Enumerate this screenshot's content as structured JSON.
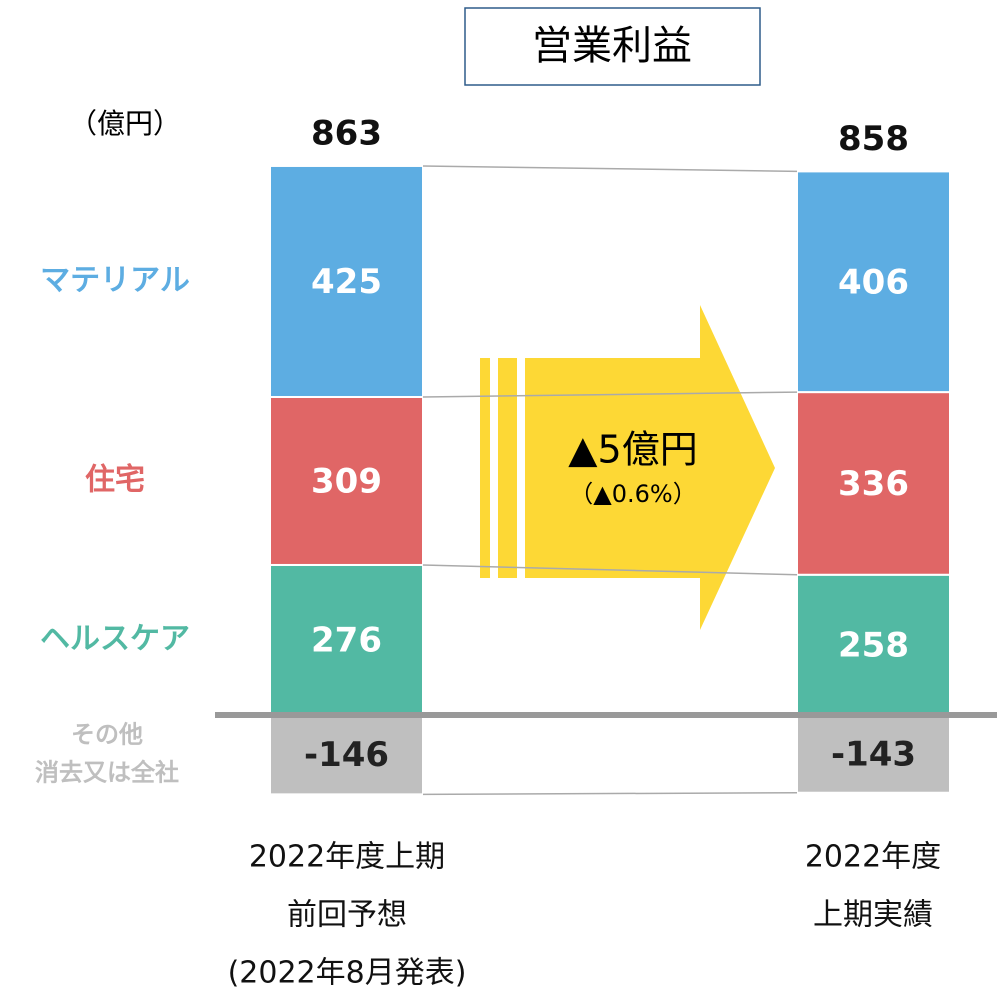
{
  "chart_data": {
    "type": "stacked-bar",
    "title": "営業利益",
    "unit_label": "（億円）",
    "categories": [
      [
        "2022年度上期",
        "前回予想",
        "(2022年8月発表)"
      ],
      [
        "2022年度",
        "上期実績"
      ]
    ],
    "series": [
      {
        "name": [
          "ヘルスケア"
        ],
        "color": "#52b9a3",
        "values": [
          276,
          258
        ]
      },
      {
        "name": [
          "住宅"
        ],
        "color": "#e06666",
        "values": [
          309,
          336
        ]
      },
      {
        "name": [
          "マテリアル"
        ],
        "color": "#5dade2",
        "values": [
          425,
          406
        ]
      },
      {
        "name": [
          "その他",
          "消去又は全社"
        ],
        "color": "#bfbfbf",
        "values": [
          -146,
          -143
        ]
      }
    ],
    "totals": [
      863,
      858
    ],
    "annotations": [
      "▲5億円",
      "（▲0.6%）"
    ]
  }
}
